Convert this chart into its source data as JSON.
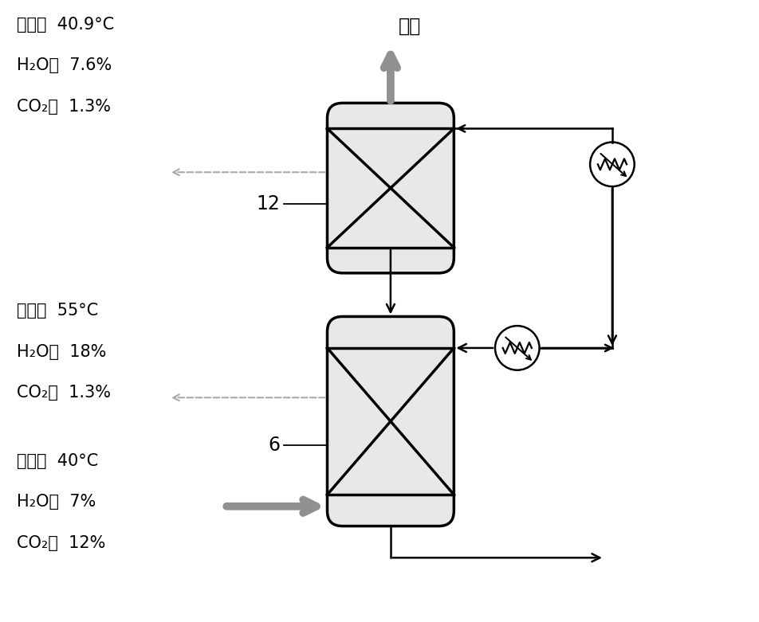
{
  "bg_color": "#ffffff",
  "vessel_fill": "#e8e8e8",
  "vessel_edge": "#000000",
  "line_color": "#000000",
  "arrow_gray": "#909090",
  "dashed_color": "#aaaaaa",
  "label1_lines": [
    "烟气：  40.9°C",
    "H₂O：  7.6%",
    "CO₂：  1.3%"
  ],
  "label2_lines": [
    "烟气：  55°C",
    "H₂O：  18%",
    "CO₂：  1.3%"
  ],
  "label3_lines": [
    "烟气：  40°C",
    "H₂O：  7%",
    "CO₂：  12%"
  ],
  "exhaust_label": "排气",
  "vessel1_label": "12",
  "vessel2_label": "6"
}
